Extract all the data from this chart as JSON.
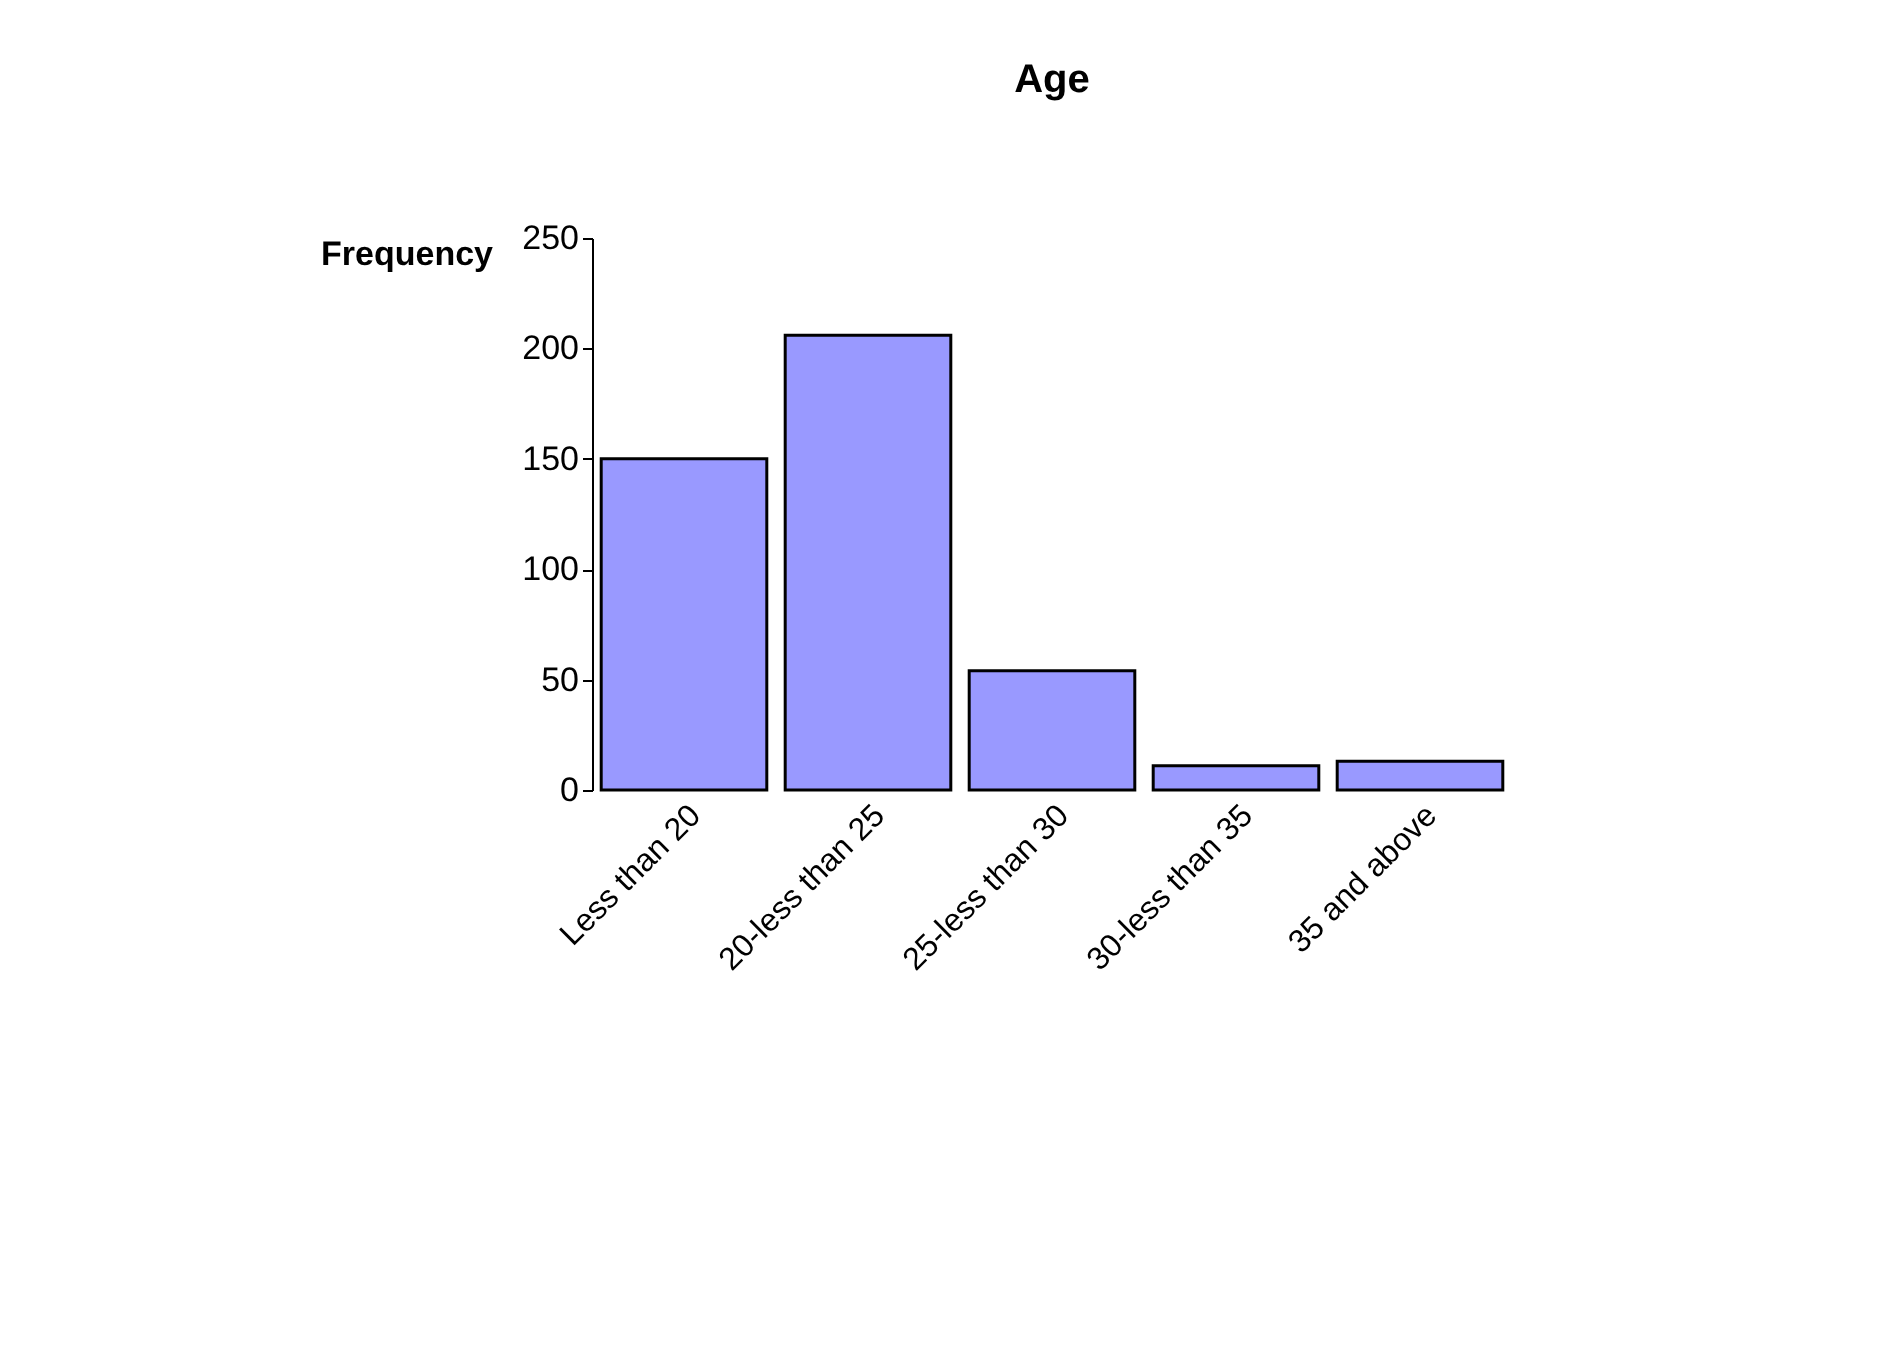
{
  "chart_data": {
    "type": "bar",
    "title": "Age",
    "ylabel": "Frequency",
    "categories": [
      "Less than 20",
      "20-less than 25",
      "25-less than 30",
      "30-less than 35",
      "35 and above"
    ],
    "values": [
      150,
      206,
      54,
      11,
      13
    ],
    "color": "#9999ff",
    "ylim": [
      0,
      250
    ],
    "yticks": [
      0,
      50,
      100,
      150,
      200,
      250
    ],
    "grid": false
  }
}
